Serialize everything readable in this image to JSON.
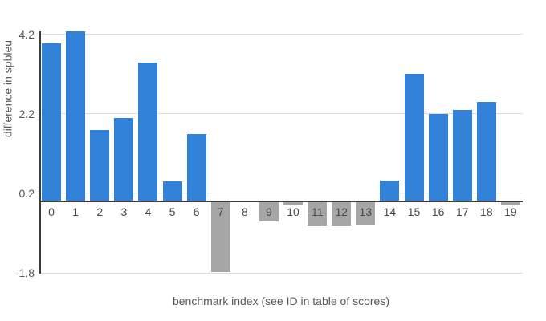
{
  "chart_data": {
    "type": "bar",
    "title": "",
    "xlabel": "benchmark index (see ID in table of scores)",
    "ylabel": "difference in spbleu",
    "categories": [
      "0",
      "1",
      "2",
      "3",
      "4",
      "5",
      "6",
      "7",
      "8",
      "9",
      "10",
      "11",
      "12",
      "13",
      "14",
      "15",
      "16",
      "17",
      "18",
      "19"
    ],
    "values": [
      3.98,
      4.28,
      1.8,
      2.1,
      3.5,
      0.5,
      1.7,
      -1.78,
      -0.03,
      -0.5,
      -0.1,
      -0.6,
      -0.6,
      -0.58,
      0.53,
      3.2,
      2.2,
      2.3,
      2.5,
      -0.11
    ],
    "yticks": [
      4.2,
      2.2,
      0.2,
      -1.8
    ],
    "ylim": [
      -1.82,
      4.3
    ],
    "grid": true,
    "legend": "none",
    "colors": {
      "positive_bar": "#3182d8",
      "negative_bar": "#a6a6a6",
      "gridline": "#dcdcdc",
      "axis_line": "#3c3c3c",
      "tick_label": "#595959",
      "axis_title": "#595959",
      "background": "#ffffff"
    }
  }
}
